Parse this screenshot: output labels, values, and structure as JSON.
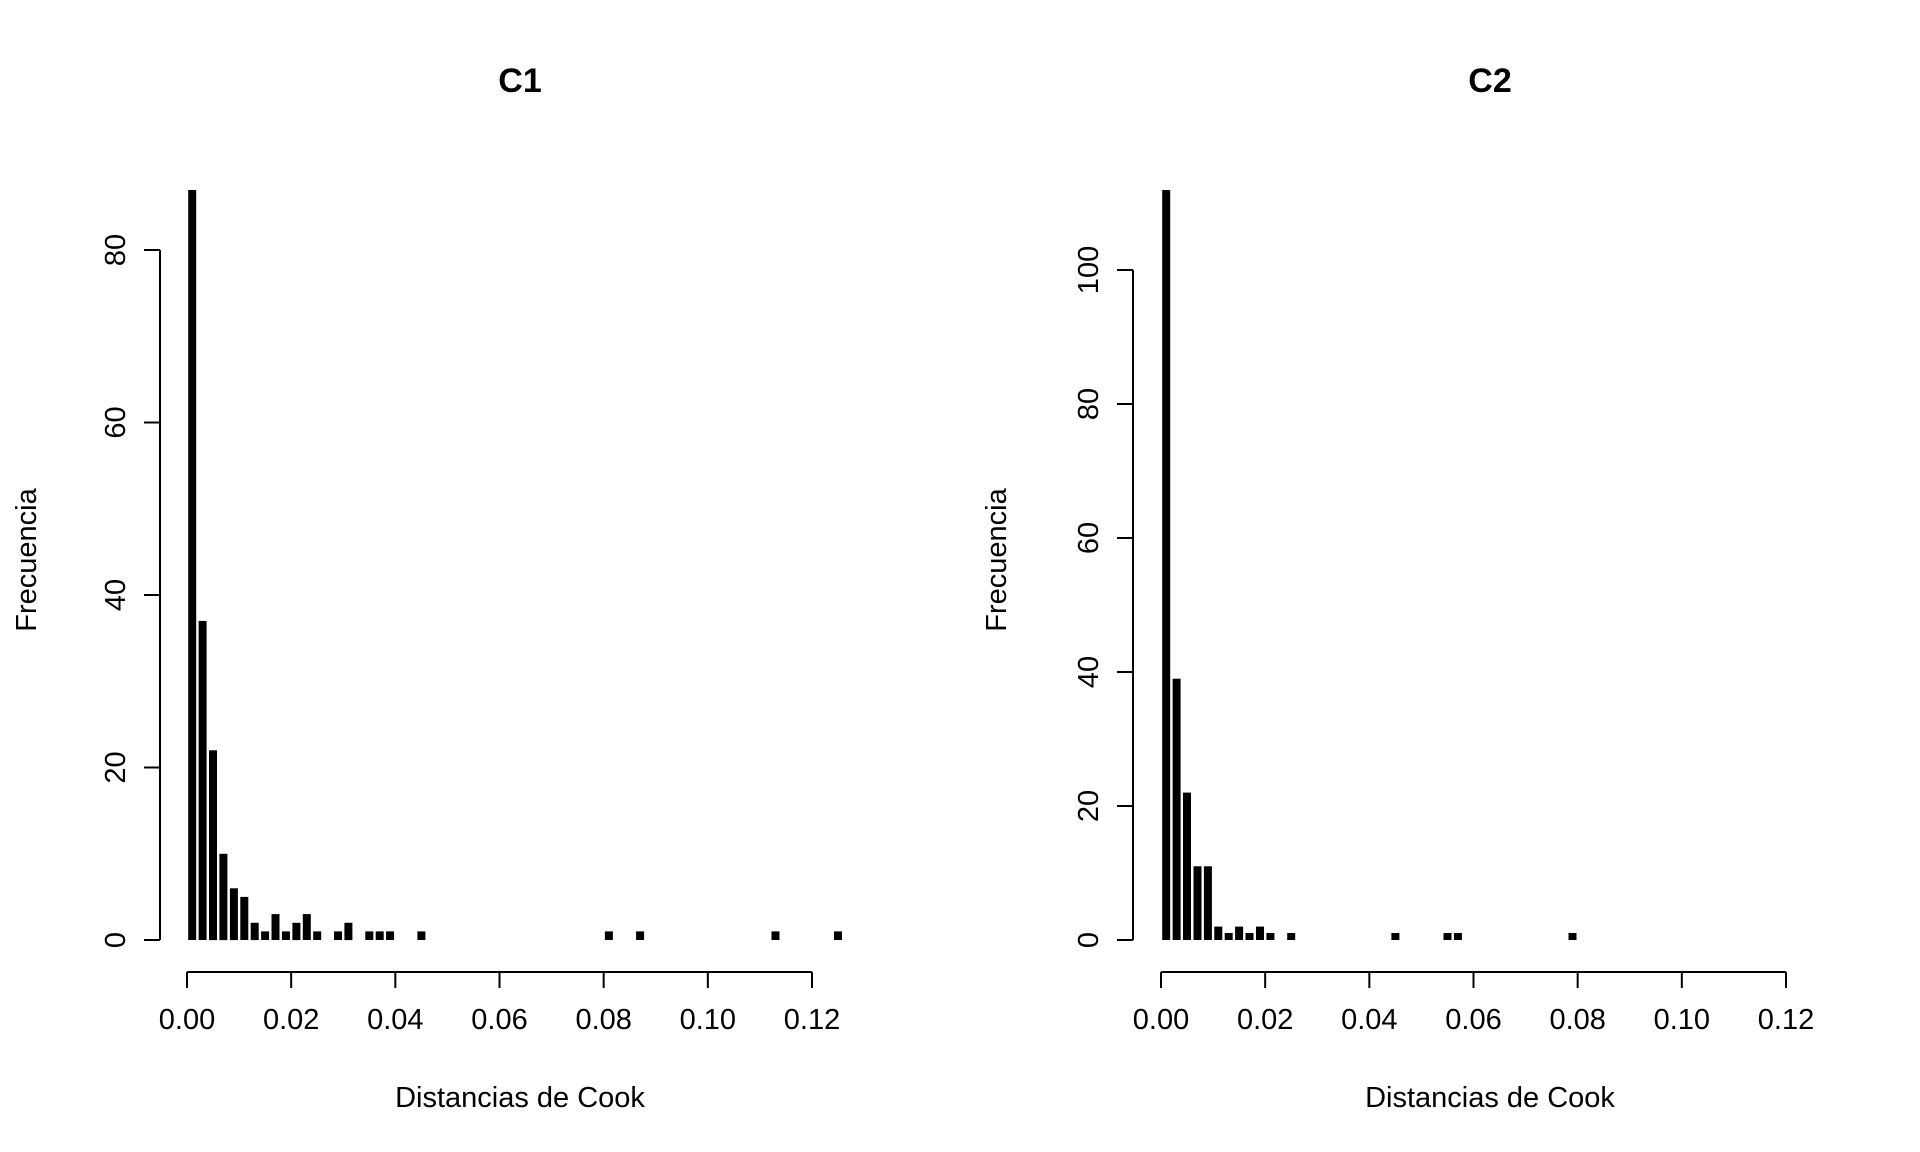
{
  "chart_data": [
    {
      "type": "bar",
      "title": "C1",
      "xlabel": "Distancias de Cook",
      "ylabel": "Frecuencia",
      "xlim": [
        0,
        0.12
      ],
      "xticks": [
        "0.00",
        "0.02",
        "0.04",
        "0.06",
        "0.08",
        "0.10",
        "0.12"
      ],
      "yticks": [
        "0",
        "20",
        "40",
        "60",
        "80"
      ],
      "ylim": [
        0,
        80
      ],
      "bin_width": 0.002,
      "x": [
        0.001,
        0.003,
        0.005,
        0.007,
        0.009,
        0.011,
        0.013,
        0.015,
        0.017,
        0.019,
        0.021,
        0.023,
        0.025,
        0.029,
        0.031,
        0.035,
        0.037,
        0.039,
        0.045,
        0.081,
        0.087,
        0.113,
        0.125
      ],
      "values": [
        87,
        37,
        22,
        10,
        6,
        5,
        2,
        1,
        3,
        1,
        2,
        3,
        1,
        1,
        2,
        1,
        1,
        1,
        1,
        1,
        1,
        1,
        1
      ],
      "grid": false
    },
    {
      "type": "bar",
      "title": "C2",
      "xlabel": "Distancias de Cook",
      "ylabel": "Frecuencia",
      "xlim": [
        0,
        0.12
      ],
      "xticks": [
        "0.00",
        "0.02",
        "0.04",
        "0.06",
        "0.08",
        "0.10",
        "0.12"
      ],
      "yticks": [
        "0",
        "20",
        "40",
        "60",
        "80",
        "100"
      ],
      "ylim": [
        0,
        100
      ],
      "bin_width": 0.002,
      "x": [
        0.001,
        0.003,
        0.005,
        0.007,
        0.009,
        0.011,
        0.013,
        0.015,
        0.017,
        0.019,
        0.021,
        0.025,
        0.045,
        0.055,
        0.057,
        0.079
      ],
      "values": [
        112,
        39,
        22,
        11,
        11,
        2,
        1,
        2,
        1,
        2,
        1,
        1,
        1,
        1,
        1,
        1
      ],
      "grid": false
    }
  ]
}
